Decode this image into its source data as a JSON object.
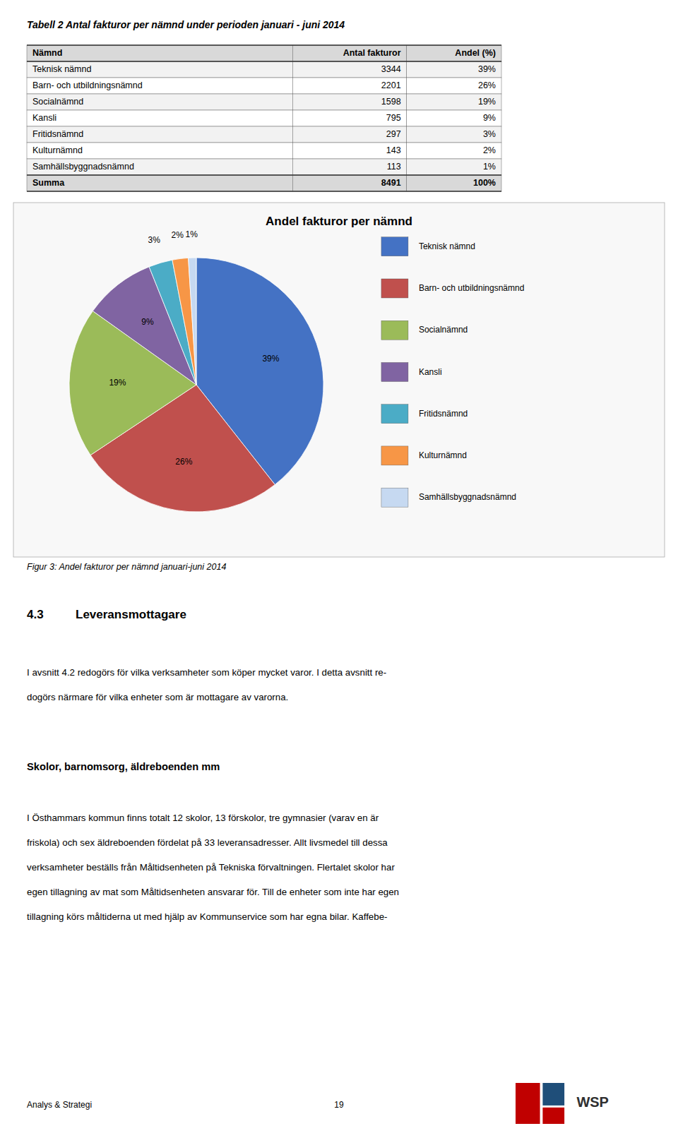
{
  "page_title": "Tabell 2 Antal fakturor per nämnd under perioden januari - juni 2014",
  "table": {
    "headers": [
      "Nämnd",
      "Antal fakturor",
      "Andel (%)"
    ],
    "rows": [
      [
        "Teknisk nämnd",
        "3344",
        "39%"
      ],
      [
        "Barn- och utbildningsnämnd",
        "2201",
        "26%"
      ],
      [
        "Socialnämnd",
        "1598",
        "19%"
      ],
      [
        "Kansli",
        "795",
        "9%"
      ],
      [
        "Fritidsnämnd",
        "297",
        "3%"
      ],
      [
        "Kulturnämnd",
        "143",
        "2%"
      ],
      [
        "Samhällsbyggnadsnämnd",
        "113",
        "1%"
      ]
    ],
    "footer": [
      "Summa",
      "8491",
      "100%"
    ]
  },
  "chart_data": {
    "type": "pie",
    "title": "Andel fakturor per nämnd",
    "categories": [
      "Teknisk nämnd",
      "Barn- och utbildningsnämnd",
      "Socialnämnd",
      "Kansli",
      "Fritidsnämnd",
      "Kulturnämnd",
      "Samhällsbyggnadsnämnd"
    ],
    "values": [
      39,
      26,
      19,
      9,
      3,
      2,
      1
    ],
    "value_labels": [
      "39%",
      "26%",
      "19%",
      "9%",
      "3%",
      "2%",
      "1%"
    ],
    "colors": [
      "#4472C4",
      "#C0504D",
      "#9BBB59",
      "#8064A2",
      "#4BACC6",
      "#F79646",
      "#C6D9F1"
    ],
    "data_labels": true,
    "legend": "right"
  },
  "caption": "Figur 3: Andel fakturor per nämnd januari-juni 2014",
  "section": {
    "number": "4.3",
    "heading": "Leveransmottagare",
    "paragraph1": [
      "I avsnitt 4.2 redogörs för vilka verksamheter som köper mycket varor. I detta avsnitt re-",
      "dogörs närmare för vilka enheter som är mottagare av varorna."
    ],
    "subheading": "Skolor, barnomsorg, äldreboenden mm",
    "paragraph2": [
      "I Östhammars kommun finns totalt 12 skolor, 13 förskolor, tre gymnasier (varav en är",
      "friskola) och sex äldreboenden fördelat på 33 leveransadresser. Allt livsmedel till dessa",
      "verksamheter beställs från Måltidsenheten på Tekniska förvaltningen. Flertalet skolor har",
      "egen tillagning av mat som Måltidsenheten ansvarar för. Till de enheter som inte har egen",
      "tillagning körs måltiderna ut med hjälp av Kommunservice som har egna bilar. Kaffebe-"
    ]
  },
  "footer": {
    "left": "Analys & Strategi",
    "center": "19"
  },
  "logo_text": "WSP"
}
